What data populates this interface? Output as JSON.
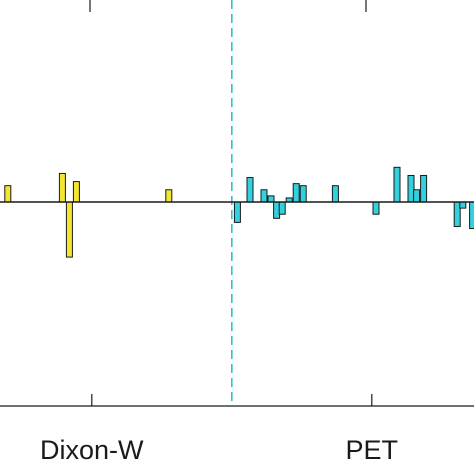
{
  "chart_data": {
    "type": "bar",
    "title": "",
    "xlabel": "",
    "ylabel": "",
    "xlim": [
      0,
      3.4
    ],
    "ylim": [
      -1,
      1
    ],
    "baseline": 0,
    "grid": false,
    "legend": "none",
    "x_ticks": [
      {
        "x": 0.67,
        "label": "Dixon-W"
      },
      {
        "x": 2.67,
        "label": "PET"
      }
    ],
    "separator": {
      "x": 1.67,
      "style": "dashed",
      "color": "#2ec4c4"
    },
    "series": [
      {
        "color": "#f2e633",
        "points": [
          {
            "x": 0.07,
            "y": 0.08
          },
          {
            "x": 0.46,
            "y": 0.14
          },
          {
            "x": 0.51,
            "y": -0.27
          },
          {
            "x": 0.56,
            "y": 0.1
          },
          {
            "x": 1.22,
            "y": 0.06
          }
        ]
      },
      {
        "color": "#33d1df",
        "points": [
          {
            "x": 1.71,
            "y": -0.1
          },
          {
            "x": 1.8,
            "y": 0.12
          },
          {
            "x": 1.9,
            "y": 0.06
          },
          {
            "x": 1.95,
            "y": 0.03
          },
          {
            "x": 1.99,
            "y": -0.08
          },
          {
            "x": 2.03,
            "y": -0.06
          },
          {
            "x": 2.08,
            "y": 0.02
          },
          {
            "x": 2.13,
            "y": 0.09
          },
          {
            "x": 2.18,
            "y": 0.08
          },
          {
            "x": 2.41,
            "y": 0.08
          },
          {
            "x": 2.7,
            "y": -0.06
          },
          {
            "x": 2.85,
            "y": 0.17
          },
          {
            "x": 2.95,
            "y": 0.13
          },
          {
            "x": 2.99,
            "y": 0.06
          },
          {
            "x": 3.04,
            "y": 0.13
          },
          {
            "x": 3.28,
            "y": -0.12
          },
          {
            "x": 3.32,
            "y": -0.03
          },
          {
            "x": 3.39,
            "y": -0.13
          }
        ]
      }
    ]
  },
  "colors": {
    "axis": "#1a1a1a",
    "baseline": "#1a1a1a",
    "bar_edge": "#1a1a1a"
  }
}
